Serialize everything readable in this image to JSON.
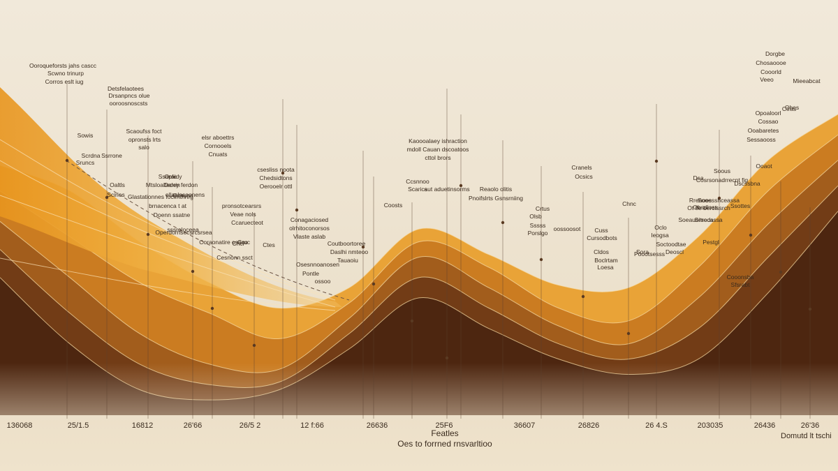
{
  "chart_data": {
    "type": "area",
    "title": "",
    "xlabel_lines": [
      "Featles",
      "Oes to forrned rnsvarltioo"
    ],
    "ylabel": "",
    "grid": false,
    "legend": "none",
    "x_ticks": [
      "136068",
      "25/1.5",
      "16812",
      "26'66",
      "26/5 2",
      "12 f:66",
      "26636",
      "25F6",
      "36607",
      "26826",
      "26 4.S",
      "203035",
      "26436",
      "26'36"
    ],
    "right_tick_label": "Domutd lt tschi",
    "x": [
      0,
      1,
      2,
      3,
      4,
      5,
      6,
      7,
      8,
      9,
      10,
      11,
      12
    ],
    "series": [
      {
        "values": [
          88,
          78,
          58,
          42,
          32,
          40,
          63,
          53,
          41,
          40,
          60,
          90,
          108
        ],
        "color": "#e89d2a"
      },
      {
        "values": [
          78,
          60,
          42,
          30,
          20,
          34,
          58,
          48,
          32,
          27,
          48,
          78,
          100
        ],
        "color": "#c8781f"
      },
      {
        "values": [
          66,
          44,
          22,
          10,
          8,
          28,
          52,
          40,
          25,
          18,
          36,
          65,
          90
        ],
        "color": "#9e5a1c"
      },
      {
        "values": [
          55,
          30,
          10,
          2,
          3,
          22,
          44,
          32,
          18,
          12,
          24,
          52,
          80
        ],
        "color": "#6e3a16"
      },
      {
        "values": [
          44,
          18,
          0,
          -4,
          0,
          16,
          36,
          24,
          12,
          6,
          12,
          38,
          70
        ],
        "color": "#4a2510"
      }
    ],
    "annotations": [
      "Ooroqueforsts jahs cascc",
      "Scwno trinurp",
      "Corros eslt iug",
      "Detsfelaotees",
      "Drsanpncs olue",
      "ooroosnoscsts",
      "Sowis",
      "Scrdna",
      "Sruncs",
      "Ssrrone",
      "Oaltls",
      "Scirlos",
      "Scaoufss foct",
      "opronsts lrts",
      "salo",
      "Ssapfe",
      "Oerrin",
      "Conuno",
      "Glastationnes foclfnthnrg",
      "brnacenca t at",
      "Operdorrlsecsrcsrsea",
      "Doenn ssatne",
      "elsr aboettrs",
      "Cornooels",
      "Cnuats",
      "Oraidy",
      "Mtsloaltedey ferdon",
      "ollaslnsoonens",
      "sssroloceea",
      "Coraonatire osaco",
      "csesliss noota",
      "Chedsidtons",
      "Oerooelr ottl",
      "pronsotcearsrs",
      "Veae nols",
      "Ccaruecteot",
      "Cruc",
      "Ctes",
      "Chcl",
      "Cesnonn ssct",
      "Osesnnoanosen",
      "Conagaciosed",
      "olrhitoconorsos",
      "Vlaste aslab",
      "Pontle",
      "ossoo",
      "Coutboortoree",
      "Daslhi nmteoo",
      "Tauaoiu",
      "Kaoooalaey ishraction",
      "mdoll Cauan dscoatoos",
      "cttol brors",
      "Ccsnnoo",
      "Scarics",
      "Coosts",
      "aut aduetinsorms",
      "Reaolo olitis",
      "Pnoifslrts Gsnsrniing",
      "Cranels",
      "Ocsics",
      "Crtus",
      "Olsb",
      "Sssss",
      "Porslgo",
      "oossoosot",
      "Cuss",
      "Cursodbots",
      "Cldos",
      "Boclrtam",
      "Loesa",
      "Chnc",
      "Oclo",
      "Ieogsa",
      "Sora",
      "Poootsesss",
      "Soctoodtae",
      "Deoscl",
      "Soous",
      "Cosrsonadrrecnt fig",
      "Sooesshceassa",
      "Ot tle berclssrch",
      "Soeauoitrecassa",
      "Dorgbe",
      "Chosaoooe",
      "Cooorld",
      "Veeo",
      "Opoaloorl",
      "Cossao",
      "Ohes",
      "Ooabaretes",
      "Sessaooss",
      "Mieeabcat",
      "Ctras",
      "Dsa",
      "Ooaot",
      "Dscssbna",
      "Ssottes",
      "Rrenoes",
      "Obsdloss",
      "Srnods",
      "Pestgl",
      "Cooonsba",
      "Sfsrabt"
    ]
  }
}
